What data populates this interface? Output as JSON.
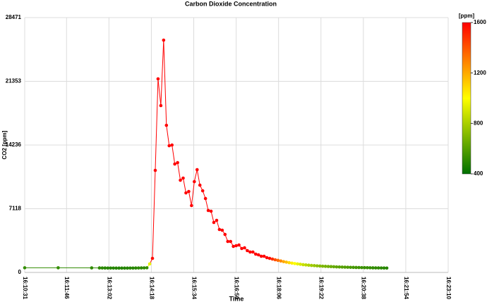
{
  "chart_data": {
    "type": "line",
    "title": "Carbon Dioxide Concentration",
    "xlabel": "Time",
    "ylabel": "CO2 [ppm]",
    "x": [
      "16:10:31",
      "16:11:31",
      "16:12:31",
      "16:12:45",
      "16:12:50",
      "16:12:55",
      "16:13:00",
      "16:13:05",
      "16:13:10",
      "16:13:15",
      "16:13:20",
      "16:13:25",
      "16:13:30",
      "16:13:35",
      "16:13:40",
      "16:13:45",
      "16:13:50",
      "16:13:55",
      "16:14:00",
      "16:14:05",
      "16:14:10",
      "16:14:15",
      "16:14:20",
      "16:14:25",
      "16:14:30",
      "16:14:35",
      "16:14:40",
      "16:14:45",
      "16:14:50",
      "16:14:55",
      "16:15:00",
      "16:15:05",
      "16:15:10",
      "16:15:15",
      "16:15:20",
      "16:15:25",
      "16:15:30",
      "16:15:35",
      "16:15:40",
      "16:15:45",
      "16:15:50",
      "16:15:55",
      "16:16:00",
      "16:16:05",
      "16:16:10",
      "16:16:15",
      "16:16:20",
      "16:16:25",
      "16:16:30",
      "16:16:35",
      "16:16:40",
      "16:16:45",
      "16:16:50",
      "16:16:55",
      "16:17:00",
      "16:17:05",
      "16:17:10",
      "16:17:15",
      "16:17:20",
      "16:17:25",
      "16:17:30",
      "16:17:35",
      "16:17:40",
      "16:17:45",
      "16:17:50",
      "16:17:55",
      "16:18:00",
      "16:18:05",
      "16:18:10",
      "16:18:15",
      "16:18:20",
      "16:18:25",
      "16:18:30",
      "16:18:35",
      "16:18:40",
      "16:18:45",
      "16:18:50",
      "16:18:55",
      "16:19:00",
      "16:19:05",
      "16:19:10",
      "16:19:15",
      "16:19:20",
      "16:19:25",
      "16:19:30",
      "16:19:35",
      "16:19:40",
      "16:19:45",
      "16:19:50",
      "16:19:55",
      "16:20:00",
      "16:20:05",
      "16:20:10",
      "16:20:15",
      "16:20:20",
      "16:20:25",
      "16:20:30",
      "16:20:35",
      "16:20:40",
      "16:20:45",
      "16:20:50",
      "16:20:55",
      "16:21:00",
      "16:21:05",
      "16:21:10",
      "16:21:15",
      "16:21:20"
    ],
    "values": [
      520,
      520,
      510,
      505,
      500,
      495,
      490,
      490,
      488,
      486,
      485,
      485,
      485,
      485,
      490,
      490,
      495,
      500,
      505,
      510,
      520,
      950,
      1573,
      11404,
      21629,
      18640,
      25955,
      16438,
      14157,
      14236,
      12112,
      12269,
      10303,
      10539,
      8887,
      9045,
      7472,
      10146,
      11483,
      9753,
      9123,
      8258,
      6921,
      6843,
      5584,
      5820,
      4798,
      4719,
      4247,
      3461,
      3461,
      2910,
      2989,
      3067,
      2674,
      2753,
      2438,
      2281,
      2281,
      2045,
      1966,
      1809,
      1809,
      1652,
      1573,
      1494,
      1416,
      1350,
      1280,
      1210,
      1150,
      1090,
      1040,
      990,
      950,
      910,
      870,
      840,
      810,
      780,
      760,
      735,
      715,
      695,
      680,
      665,
      650,
      635,
      620,
      610,
      600,
      590,
      580,
      570,
      562,
      555,
      548,
      540,
      535,
      528,
      522,
      516,
      510,
      505,
      500,
      495,
      490
    ],
    "xlim": [
      "16:10:31",
      "16:23:10"
    ],
    "xticks": [
      "16:10:31",
      "16:11:46",
      "16:13:02",
      "16:14:18",
      "16:15:34",
      "16:16:50",
      "16:18:06",
      "16:19:22",
      "16:20:38",
      "16:21:54",
      "16:23:10"
    ],
    "ylim": [
      0,
      28471
    ],
    "yticks": [
      0,
      7118,
      14236,
      21353,
      28471
    ],
    "grid": true,
    "colorbar": {
      "label": "[ppm]",
      "lim": [
        400,
        1600
      ],
      "ticks": [
        400,
        800,
        1200,
        1600
      ],
      "colors": [
        "#007000",
        "#ffff00",
        "#ff0000"
      ]
    }
  }
}
